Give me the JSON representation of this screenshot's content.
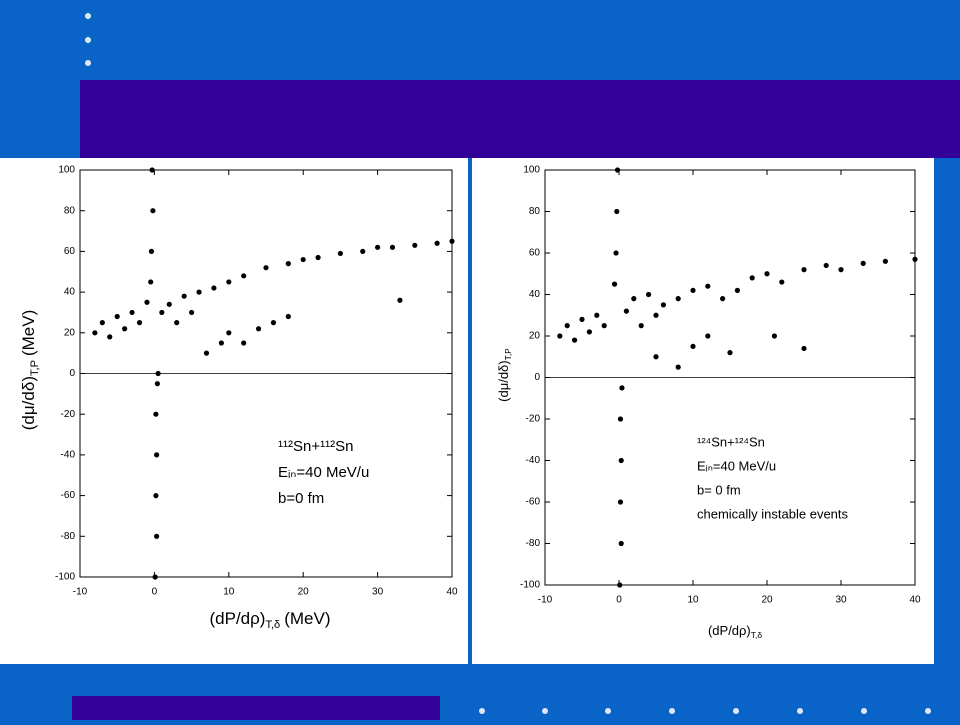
{
  "chart_data": [
    {
      "type": "scatter",
      "x_label": "(dP/dρ)",
      "x_label_sub": "T,δ",
      "x_label_unit": "(MeV)",
      "y_label": "(dμ/dδ)",
      "y_label_sub": "T,P",
      "y_label_unit": "(MeV)",
      "annotation": [
        "¹¹²Sn+¹¹²Sn",
        "Eᵢₙ=40 MeV/u",
        "b=0 fm"
      ],
      "xlim": [
        -10,
        40
      ],
      "xticks": [
        -10,
        0,
        10,
        20,
        30,
        40
      ],
      "ylim": [
        -100,
        100
      ],
      "yticks": [
        -100,
        -80,
        -60,
        -40,
        -20,
        0,
        20,
        40,
        60,
        80,
        100
      ],
      "color": "#000000",
      "x": [
        -0.3,
        -0.2,
        -0.4,
        -0.5,
        0.2,
        0.3,
        0.2,
        0.3,
        0.1,
        0.4,
        0.5,
        -8,
        -7,
        -6,
        -5,
        -4,
        -3,
        -2,
        -1,
        1,
        2,
        3,
        4,
        5,
        6,
        8,
        10,
        12,
        15,
        18,
        20,
        22,
        25,
        28,
        30,
        32,
        35,
        38,
        40,
        10,
        12,
        14,
        16,
        18,
        7,
        9,
        33
      ],
      "y": [
        100,
        80,
        60,
        45,
        -20,
        -40,
        -60,
        -80,
        -100,
        -5,
        0,
        20,
        25,
        18,
        28,
        22,
        30,
        25,
        35,
        30,
        34,
        25,
        38,
        30,
        40,
        42,
        45,
        48,
        52,
        54,
        56,
        57,
        59,
        60,
        62,
        62,
        63,
        64,
        65,
        20,
        15,
        22,
        25,
        28,
        10,
        15,
        36
      ]
    },
    {
      "type": "scatter",
      "x_label": "(dP/dρ)",
      "x_label_sub": "T,δ",
      "y_label": "(dμ/dδ)",
      "y_label_sub": "T,P",
      "annotation": [
        "¹²⁴Sn+¹²⁴Sn",
        "Eᵢₙ=40 MeV/u",
        "b= 0 fm",
        "chemically instable events"
      ],
      "xlim": [
        -10,
        40
      ],
      "xticks": [
        -10,
        0,
        10,
        20,
        30,
        40
      ],
      "ylim": [
        -100,
        100
      ],
      "yticks": [
        -100,
        -80,
        -60,
        -40,
        -20,
        0,
        20,
        40,
        60,
        80,
        100
      ],
      "color": "#000000",
      "x": [
        -0.2,
        -0.3,
        -0.4,
        -0.6,
        0.2,
        0.3,
        0.2,
        0.3,
        0.1,
        0.4,
        -8,
        -7,
        -6,
        -5,
        -4,
        -3,
        -2,
        1,
        2,
        3,
        4,
        5,
        6,
        8,
        10,
        12,
        14,
        16,
        18,
        20,
        22,
        25,
        28,
        30,
        33,
        36,
        40,
        5,
        8,
        10,
        12,
        15,
        21,
        25
      ],
      "y": [
        100,
        80,
        60,
        45,
        -20,
        -40,
        -60,
        -80,
        -100,
        -5,
        20,
        25,
        18,
        28,
        22,
        30,
        25,
        32,
        38,
        25,
        40,
        30,
        35,
        38,
        42,
        44,
        38,
        42,
        48,
        50,
        46,
        52,
        54,
        52,
        55,
        56,
        57,
        10,
        5,
        15,
        20,
        12,
        20,
        14
      ]
    }
  ]
}
